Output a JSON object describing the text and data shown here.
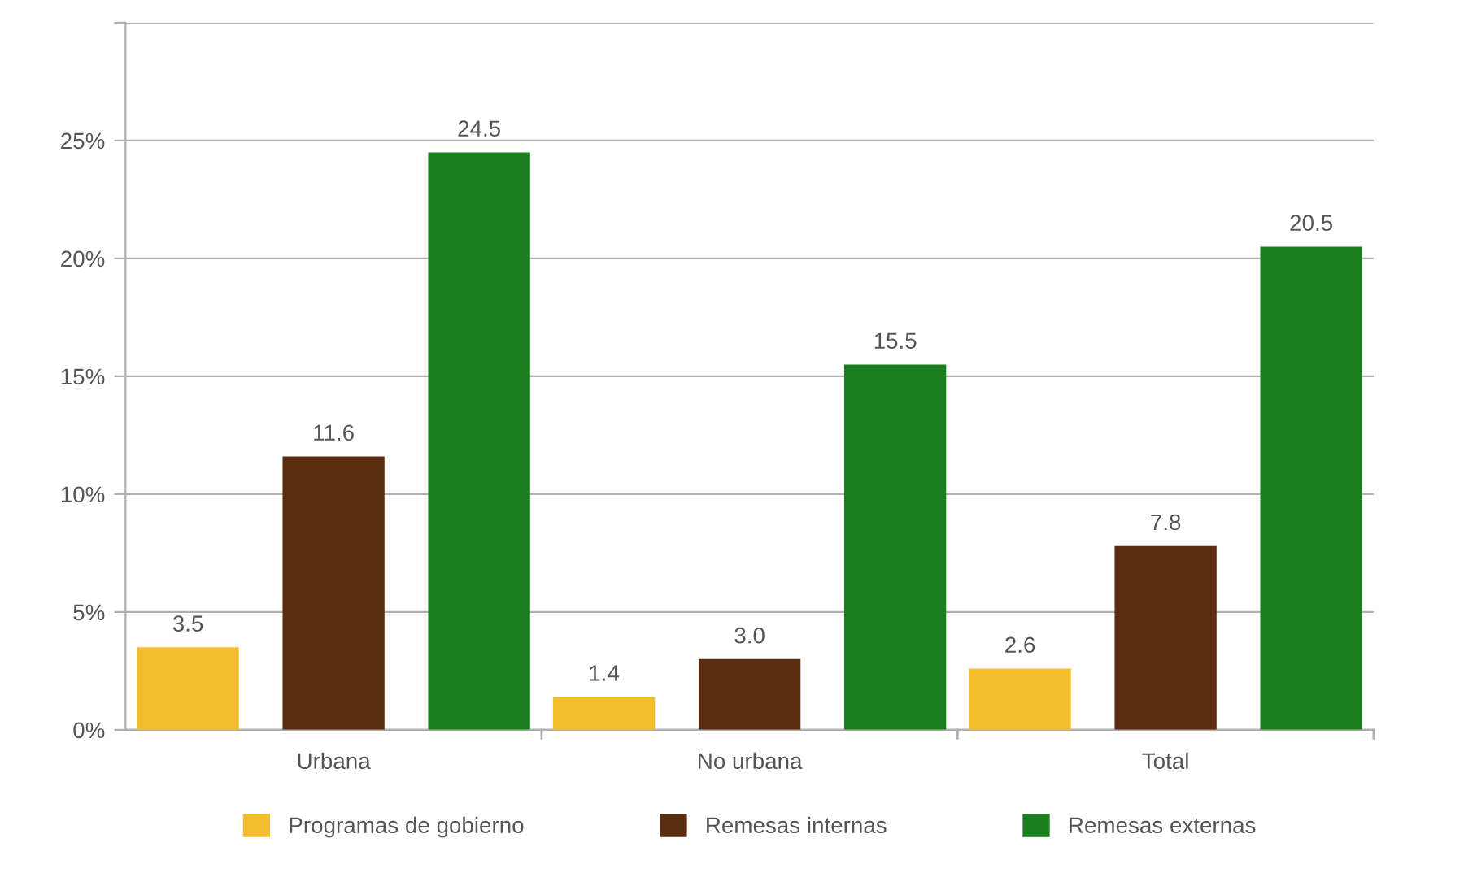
{
  "chart_data": {
    "type": "bar",
    "categories": [
      "Urbana",
      "No urbana",
      "Total"
    ],
    "series": [
      {
        "name": "Programas de gobierno",
        "color": "#f3bd2c",
        "values": [
          3.5,
          1.4,
          2.6
        ],
        "value_labels": [
          "3.5",
          "1.4",
          "2.6"
        ]
      },
      {
        "name": "Remesas internas",
        "color": "#5a2c10",
        "values": [
          11.6,
          3.0,
          7.8
        ],
        "value_labels": [
          "11.6",
          "3.0",
          "7.8"
        ]
      },
      {
        "name": "Remesas externas",
        "color": "#1b7f1f",
        "values": [
          24.5,
          15.5,
          20.5
        ],
        "value_labels": [
          "24.5",
          "15.5",
          "20.5"
        ]
      }
    ],
    "ylim": [
      0,
      30
    ],
    "yticks": [
      {
        "value": 0,
        "label": "0%"
      },
      {
        "value": 5,
        "label": "5%"
      },
      {
        "value": 10,
        "label": "10%"
      },
      {
        "value": 15,
        "label": "15%"
      },
      {
        "value": 20,
        "label": "20%"
      },
      {
        "value": 25,
        "label": "25%"
      },
      {
        "value": 30,
        "label": null
      }
    ],
    "grid": "y",
    "legend": "bottom"
  }
}
